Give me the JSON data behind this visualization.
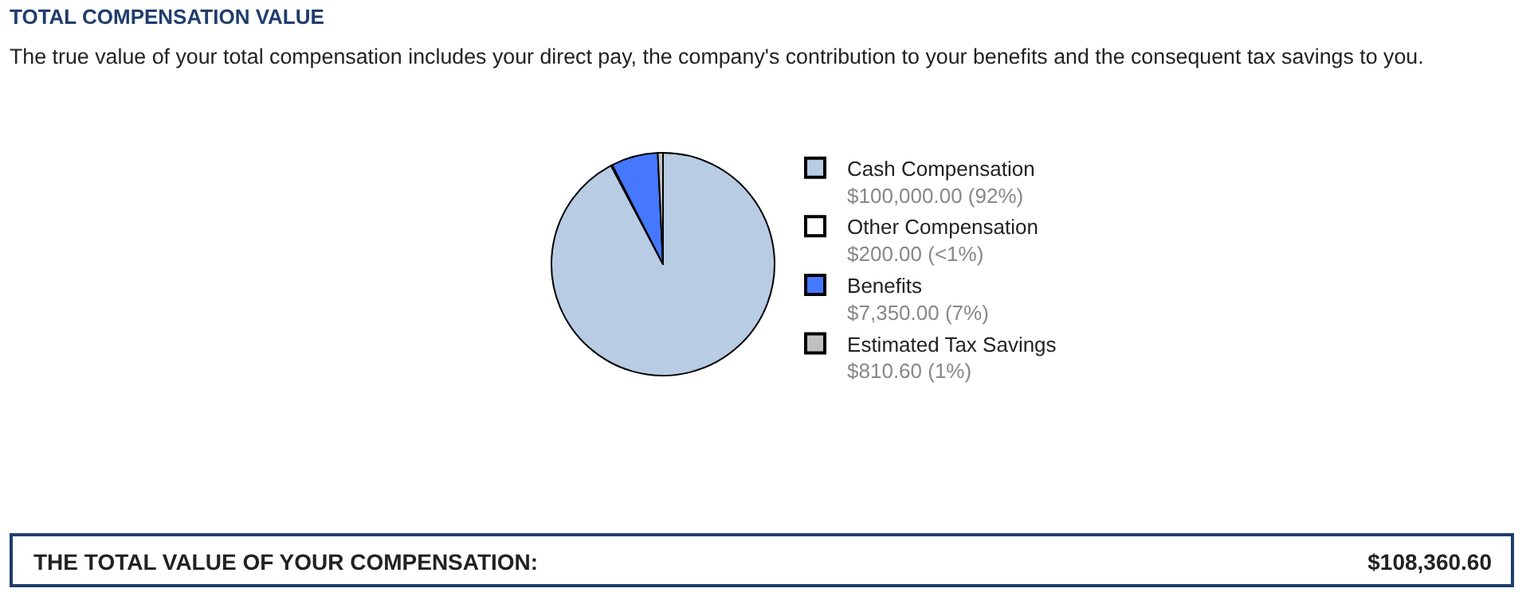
{
  "chart_data": {
    "type": "pie",
    "title": "TOTAL COMPENSATION VALUE",
    "subtitle": "The true value of your total compensation includes your direct pay, the company's contribution to your benefits and the consequent tax savings to you.",
    "categories": [
      "Cash Compensation",
      "Other Compensation",
      "Benefits",
      "Estimated Tax Savings"
    ],
    "values": [
      100000,
      200,
      7350,
      810.6
    ],
    "value_labels": [
      "$100,000.00 (92%)",
      "$200.00 (<1%)",
      "$7,350.00 (7%)",
      "$810.60 (1%)"
    ],
    "colors": [
      "#b8cce4",
      "#ffffff",
      "#4577ff",
      "#c0c0c0"
    ],
    "legend": "right",
    "annotations": [
      "THE TOTAL VALUE OF YOUR COMPENSATION:",
      "$108,360.60"
    ]
  }
}
